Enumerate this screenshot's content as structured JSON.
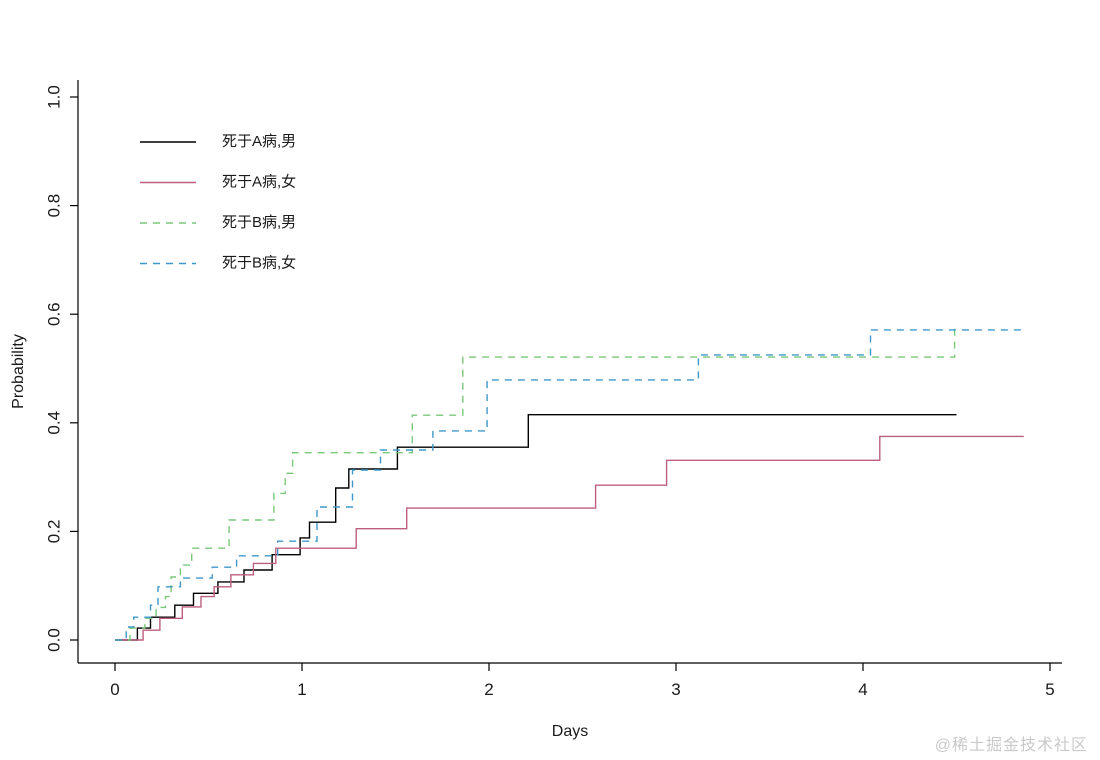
{
  "watermark": {
    "text": "@稀土掘金技术社区"
  },
  "chart_data": {
    "type": "line",
    "subtype": "step-function-cumulative-incidence",
    "title": "",
    "xlabel": "Days",
    "ylabel": "Probability",
    "xlim": [
      0,
      5
    ],
    "ylim": [
      0,
      1
    ],
    "xticks": [
      "0",
      "1",
      "2",
      "3",
      "4",
      "5"
    ],
    "xtick_values": [
      0,
      1,
      2,
      3,
      4,
      5
    ],
    "yticks": [
      "0.0",
      "0.2",
      "0.4",
      "0.6",
      "0.8",
      "1.0"
    ],
    "ytick_values": [
      0,
      0.2,
      0.4,
      0.6,
      0.8,
      1.0
    ],
    "grid": false,
    "legend_position": "top-left",
    "axis_color": "#000000",
    "series": [
      {
        "id": "a-male",
        "name": "死于A病,男",
        "color": "#000000",
        "dash": "solid",
        "x": [
          0,
          0.12,
          0.19,
          0.32,
          0.42,
          0.55,
          0.69,
          0.84,
          0.99,
          1.04,
          1.18,
          1.25,
          1.51,
          2.21
        ],
        "y": [
          0,
          0.022,
          0.042,
          0.064,
          0.086,
          0.107,
          0.129,
          0.157,
          0.188,
          0.217,
          0.28,
          0.315,
          0.355,
          0.415
        ],
        "end_x": 4.5
      },
      {
        "id": "a-female",
        "name": "死于A病,女",
        "color": "#bd5f7d",
        "dash": "solid",
        "x": [
          0,
          0.15,
          0.24,
          0.36,
          0.46,
          0.53,
          0.62,
          0.74,
          0.86,
          1.29,
          1.56,
          2.57,
          2.95,
          4.09
        ],
        "y": [
          0,
          0.018,
          0.04,
          0.061,
          0.08,
          0.098,
          0.12,
          0.141,
          0.169,
          0.205,
          0.243,
          0.285,
          0.331,
          0.375
        ],
        "end_x": 4.86
      },
      {
        "id": "b-male",
        "name": "死于B病,男",
        "color": "#79c779",
        "dash": "dashed",
        "x": [
          0,
          0.08,
          0.16,
          0.22,
          0.27,
          0.3,
          0.35,
          0.41,
          0.61,
          0.85,
          0.91,
          0.95,
          1.59,
          1.86,
          4.49
        ],
        "y": [
          0,
          0.022,
          0.04,
          0.06,
          0.08,
          0.116,
          0.138,
          0.169,
          0.221,
          0.27,
          0.307,
          0.345,
          0.414,
          0.521,
          0.58
        ],
        "end_x": 4.49
      },
      {
        "id": "b-female",
        "name": "死于B病,女",
        "color": "#3f98c9",
        "dash": "dashed",
        "x": [
          0,
          0.06,
          0.1,
          0.19,
          0.23,
          0.35,
          0.52,
          0.65,
          0.87,
          1.08,
          1.27,
          1.42,
          1.7,
          1.99,
          3.12,
          4.04
        ],
        "y": [
          0,
          0.024,
          0.042,
          0.064,
          0.098,
          0.114,
          0.134,
          0.155,
          0.182,
          0.245,
          0.313,
          0.35,
          0.385,
          0.479,
          0.525,
          0.571
        ],
        "end_x": 4.86
      }
    ]
  }
}
